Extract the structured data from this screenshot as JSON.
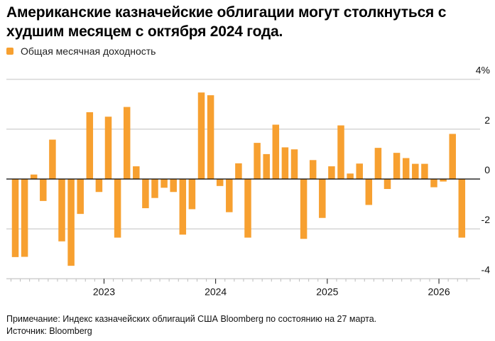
{
  "title": "Американские казначейские облигации могут столкнуться с худшим месяцем с октября 2024 года.",
  "legend": {
    "label": "Общая месячная доходность",
    "color": "#F7A030"
  },
  "note": "Примечание: Индекс казначейских облигаций США Bloomberg по состоянию на 27 марта.",
  "source": "Источник: Bloomberg",
  "chart_data": {
    "type": "bar",
    "title": "Американские казначейские облигации могут столкнуться с худшим месяцем с октября 2024 года.",
    "xlabel": "",
    "ylabel": "%",
    "ylim": [
      -4,
      4
    ],
    "yticks": [
      4,
      2,
      0,
      -2,
      -4
    ],
    "ytick_labels": [
      "4%",
      "2",
      "0",
      "-2",
      "-4"
    ],
    "grid": true,
    "legend_position": "top-left",
    "x_start": "2022-03",
    "year_ticks": [
      {
        "label": "2023",
        "index": 10
      },
      {
        "label": "2024",
        "index": 22
      },
      {
        "label": "2025",
        "index": 34
      },
      {
        "label": "2026",
        "index": 46
      }
    ],
    "series": [
      {
        "name": "Общая месячная доходность",
        "color": "#F7A030",
        "categories": [
          "2022-03",
          "2022-04",
          "2022-05",
          "2022-06",
          "2022-07",
          "2022-08",
          "2022-09",
          "2022-10",
          "2022-11",
          "2022-12",
          "2023-01",
          "2023-02",
          "2023-03",
          "2023-04",
          "2023-05",
          "2023-06",
          "2023-07",
          "2023-08",
          "2023-09",
          "2023-10",
          "2023-11",
          "2023-12",
          "2024-01",
          "2024-02",
          "2024-03",
          "2024-04",
          "2024-05",
          "2024-06",
          "2024-07",
          "2024-08",
          "2024-09",
          "2024-10",
          "2024-11",
          "2024-12",
          "2025-01",
          "2025-02",
          "2025-03",
          "2025-04",
          "2025-05",
          "2025-06",
          "2025-07",
          "2025-08",
          "2025-09",
          "2025-10",
          "2025-11",
          "2025-12",
          "2026-01",
          "2026-02",
          "2026-03"
        ],
        "values": [
          -3.13,
          -3.12,
          0.18,
          -0.88,
          1.58,
          -2.5,
          -3.48,
          -1.4,
          2.68,
          -0.52,
          2.5,
          -2.35,
          2.89,
          0.51,
          -1.17,
          -0.76,
          -0.35,
          -0.52,
          -2.23,
          -1.21,
          3.47,
          3.36,
          -0.28,
          -1.33,
          0.63,
          -2.35,
          1.45,
          1.0,
          2.18,
          1.27,
          1.19,
          -2.4,
          0.76,
          -1.56,
          0.51,
          2.15,
          0.22,
          0.62,
          -1.04,
          1.25,
          -0.4,
          1.05,
          0.84,
          0.61,
          0.61,
          -0.33,
          -0.1,
          1.81,
          -2.35
        ]
      }
    ]
  }
}
